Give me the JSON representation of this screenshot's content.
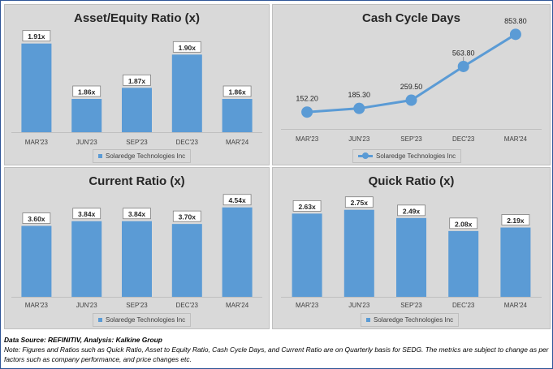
{
  "footer": {
    "source": "Data Source: REFINITIV, Analysis: Kalkine Group",
    "note": "Note: Figures and Ratios such as Quick Ratio, Asset to Equity Ratio, Cash Cycle Days, and Current Ratio are on Quarterly basis for SEDG. The metrics are subject to change as per factors such as company performance, and price changes etc."
  },
  "colors": {
    "series": "#5b9bd5",
    "panel_bg": "#d9d9d9",
    "frame": "#2f5597"
  },
  "chart_data": [
    {
      "type": "bar",
      "title": "Asset/Equity Ratio (x)",
      "categories": [
        "MAR'23",
        "JUN'23",
        "SEP'23",
        "DEC'23",
        "MAR'24"
      ],
      "series": [
        {
          "name": "Solaredge Technologies Inc",
          "values": [
            1.91,
            1.86,
            1.87,
            1.9,
            1.86
          ]
        }
      ],
      "labels": [
        "1.91x",
        "1.86x",
        "1.87x",
        "1.90x",
        "1.86x"
      ],
      "ylim": [
        1.83,
        1.92
      ],
      "legend": "bottom",
      "grid": false
    },
    {
      "type": "line",
      "title": "Cash Cycle Days",
      "categories": [
        "MAR'23",
        "JUN'23",
        "SEP'23",
        "DEC'23",
        "MAR'24"
      ],
      "series": [
        {
          "name": "Solaredge Technologies Inc",
          "values": [
            152.2,
            185.3,
            259.5,
            563.8,
            853.8
          ]
        }
      ],
      "labels": [
        "152.20",
        "185.30",
        "259.50",
        "563.80",
        "853.80"
      ],
      "ylim": [
        0,
        900
      ],
      "legend": "bottom",
      "grid": false
    },
    {
      "type": "bar",
      "title": "Current Ratio (x)",
      "categories": [
        "MAR'23",
        "JUN'23",
        "SEP'23",
        "DEC'23",
        "MAR'24"
      ],
      "series": [
        {
          "name": "Solaredge Technologies Inc",
          "values": [
            3.6,
            3.84,
            3.84,
            3.7,
            4.54
          ]
        }
      ],
      "labels": [
        "3.60x",
        "3.84x",
        "3.84x",
        "3.70x",
        "4.54x"
      ],
      "ylim": [
        0,
        4.9
      ],
      "legend": "bottom",
      "grid": false
    },
    {
      "type": "bar",
      "title": "Quick Ratio (x)",
      "categories": [
        "MAR'23",
        "JUN'23",
        "SEP'23",
        "DEC'23",
        "MAR'24"
      ],
      "series": [
        {
          "name": "Solaredge Technologies Inc",
          "values": [
            2.63,
            2.75,
            2.49,
            2.08,
            2.19
          ]
        }
      ],
      "labels": [
        "2.63x",
        "2.75x",
        "2.49x",
        "2.08x",
        "2.19x"
      ],
      "ylim": [
        0,
        3.05
      ],
      "legend": "bottom",
      "grid": false
    }
  ]
}
